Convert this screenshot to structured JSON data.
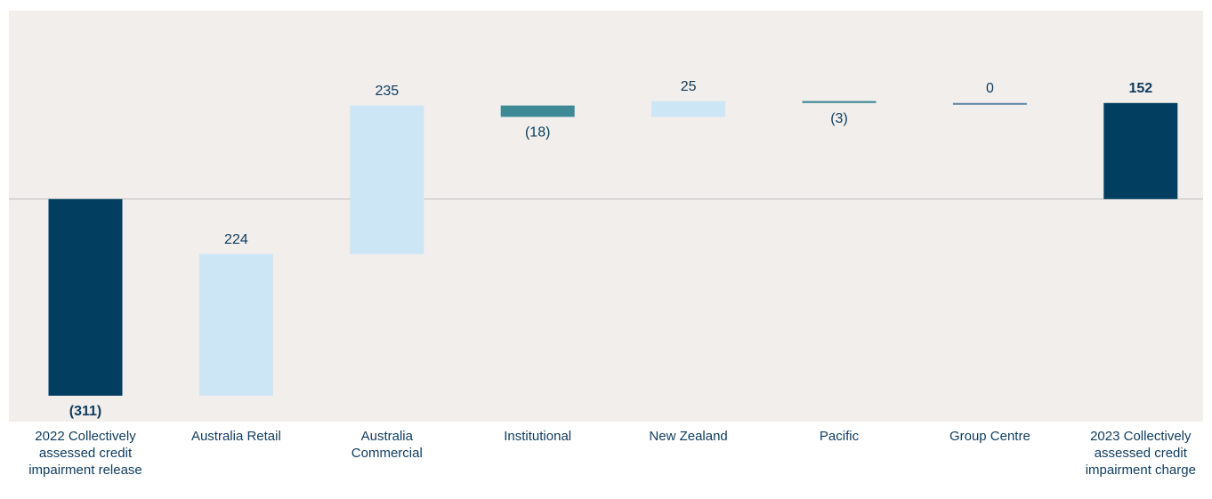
{
  "chart_data": {
    "type": "waterfall",
    "categories": [
      "2022 Collectively assessed credit impairment release",
      "Australia Retail",
      "Australia Commercial",
      "Institutional",
      "New Zealand",
      "Pacific",
      "Group Centre",
      "2023 Collectively assessed credit impairment charge"
    ],
    "values": [
      -311,
      224,
      235,
      -18,
      25,
      -3,
      0,
      152
    ],
    "value_labels": [
      "(311)",
      "224",
      "235",
      "(18)",
      "25",
      "(3)",
      "0",
      "152"
    ],
    "colors": [
      "#023e5f",
      "#cce6f6",
      "#cce6f6",
      "#3d8a96",
      "#cce6f6",
      "#3d8a96",
      "#5a86a6",
      "#023e5f"
    ],
    "ylim": [
      -352,
      298
    ]
  }
}
